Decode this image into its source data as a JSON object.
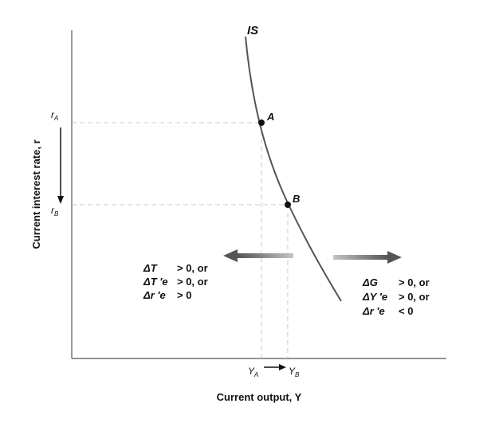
{
  "chart_data": {
    "type": "diagram",
    "curve_label": "IS",
    "points": [
      {
        "label": "A",
        "r_label": "r",
        "r_sub": "A",
        "y_label": "Y",
        "y_sub": "A"
      },
      {
        "label": "B",
        "r_label": "r",
        "r_sub": "B",
        "y_label": "Y",
        "y_sub": "B"
      }
    ],
    "xlabel": "Current output, Y",
    "ylabel": "Current interest rate, r",
    "left_shocks": [
      {
        "sym": "ΔT",
        "cond": "> 0, or"
      },
      {
        "sym": "ΔT ′e",
        "cond": "> 0, or"
      },
      {
        "sym": "Δr ′e",
        "cond": "> 0"
      }
    ],
    "right_shocks": [
      {
        "sym": "ΔG",
        "cond": "> 0, or"
      },
      {
        "sym": "ΔY ′e",
        "cond": "> 0, or"
      },
      {
        "sym": "Δr ′e",
        "cond": "< 0"
      }
    ],
    "colors": {
      "axis": "#555555",
      "curve": "#555555",
      "dash": "#c8c8c8",
      "arrow": "#6b6b6b"
    }
  }
}
